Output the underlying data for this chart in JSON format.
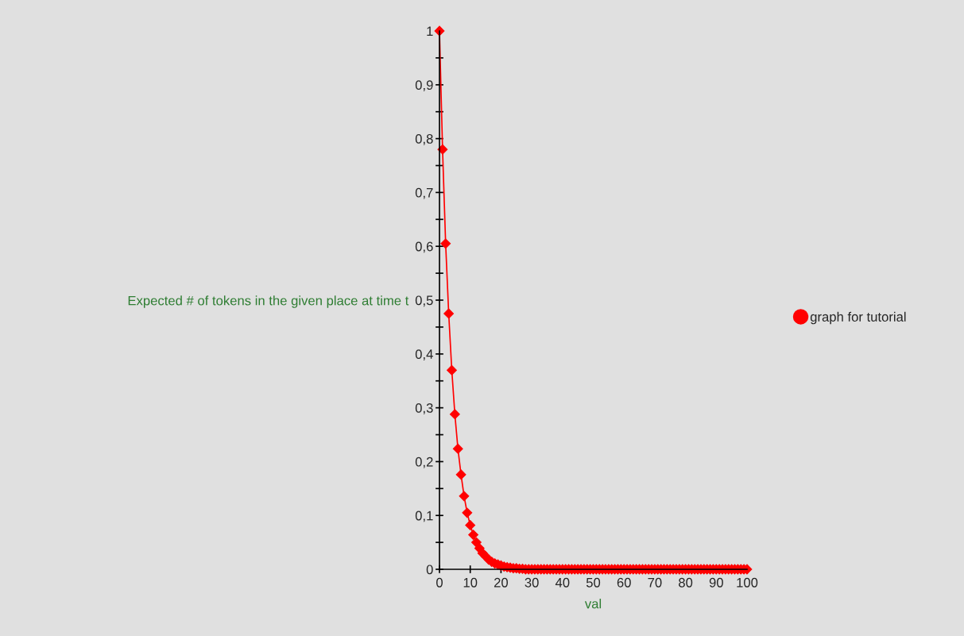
{
  "chart_data": {
    "type": "line",
    "xlabel": "val",
    "ylabel": "Expected # of tokens in the given place at time t",
    "x": [
      0,
      1,
      2,
      3,
      4,
      5,
      6,
      7,
      8,
      9,
      10,
      11,
      12,
      13,
      14,
      15,
      16,
      17,
      18,
      19,
      20,
      21,
      22,
      23,
      24,
      25,
      26,
      27,
      28,
      29,
      30,
      31,
      32,
      33,
      34,
      35,
      36,
      37,
      38,
      39,
      40,
      41,
      42,
      43,
      44,
      45,
      46,
      47,
      48,
      49,
      50,
      51,
      52,
      53,
      54,
      55,
      56,
      57,
      58,
      59,
      60,
      61,
      62,
      63,
      64,
      65,
      66,
      67,
      68,
      69,
      70,
      71,
      72,
      73,
      74,
      75,
      76,
      77,
      78,
      79,
      80,
      81,
      82,
      83,
      84,
      85,
      86,
      87,
      88,
      89,
      90,
      91,
      92,
      93,
      94,
      95,
      96,
      97,
      98,
      99,
      100
    ],
    "series": [
      {
        "name": "graph for tutorial",
        "color": "#ff0000",
        "values": [
          1,
          0.78,
          0.605,
          0.475,
          0.37,
          0.288,
          0.224,
          0.176,
          0.136,
          0.105,
          0.082,
          0.064,
          0.05,
          0.039,
          0.03,
          0.024,
          0.018,
          0.014,
          0.011,
          0.009,
          0.007,
          0.005,
          0.004,
          0.003,
          0.002,
          0.002,
          0.001,
          0.001,
          0,
          0,
          0,
          0,
          0,
          0,
          0,
          0,
          0,
          0,
          0,
          0,
          0,
          0,
          0,
          0,
          0,
          0,
          0,
          0,
          0,
          0,
          0,
          0,
          0,
          0,
          0,
          0,
          0,
          0,
          0,
          0,
          0,
          0,
          0,
          0,
          0,
          0,
          0,
          0,
          0,
          0,
          0,
          0,
          0,
          0,
          0,
          0,
          0,
          0,
          0,
          0,
          0,
          0,
          0,
          0,
          0,
          0,
          0,
          0,
          0,
          0,
          0,
          0,
          0,
          0,
          0,
          0,
          0,
          0,
          0,
          0,
          0
        ]
      }
    ],
    "xlim": [
      0,
      100
    ],
    "xticks": [
      0,
      10,
      20,
      30,
      40,
      50,
      60,
      70,
      80,
      90,
      100
    ],
    "ylim": [
      0,
      1
    ],
    "yticks": [
      0,
      {
        "value": 0.05,
        "label": null
      },
      {
        "value": 0.1,
        "label": "0,1"
      },
      {
        "value": 0.15,
        "label": null
      },
      {
        "value": 0.2,
        "label": "0,2"
      },
      {
        "value": 0.25,
        "label": null
      },
      {
        "value": 0.3,
        "label": "0,3"
      },
      {
        "value": 0.35,
        "label": null
      },
      {
        "value": 0.4,
        "label": "0,4"
      },
      {
        "value": 0.45,
        "label": null
      },
      {
        "value": 0.5,
        "label": "0,5"
      },
      {
        "value": 0.55,
        "label": null
      },
      {
        "value": 0.6,
        "label": "0,6"
      },
      {
        "value": 0.65,
        "label": null
      },
      {
        "value": 0.7,
        "label": "0,7"
      },
      {
        "value": 0.75,
        "label": null
      },
      {
        "value": 0.8,
        "label": "0,8"
      },
      {
        "value": 0.85,
        "label": null
      },
      {
        "value": 0.9,
        "label": "0,9"
      },
      {
        "value": 0.95,
        "label": null
      },
      1
    ],
    "marker": "diamond",
    "line_style": "solid",
    "grid": false,
    "legend": "right"
  }
}
